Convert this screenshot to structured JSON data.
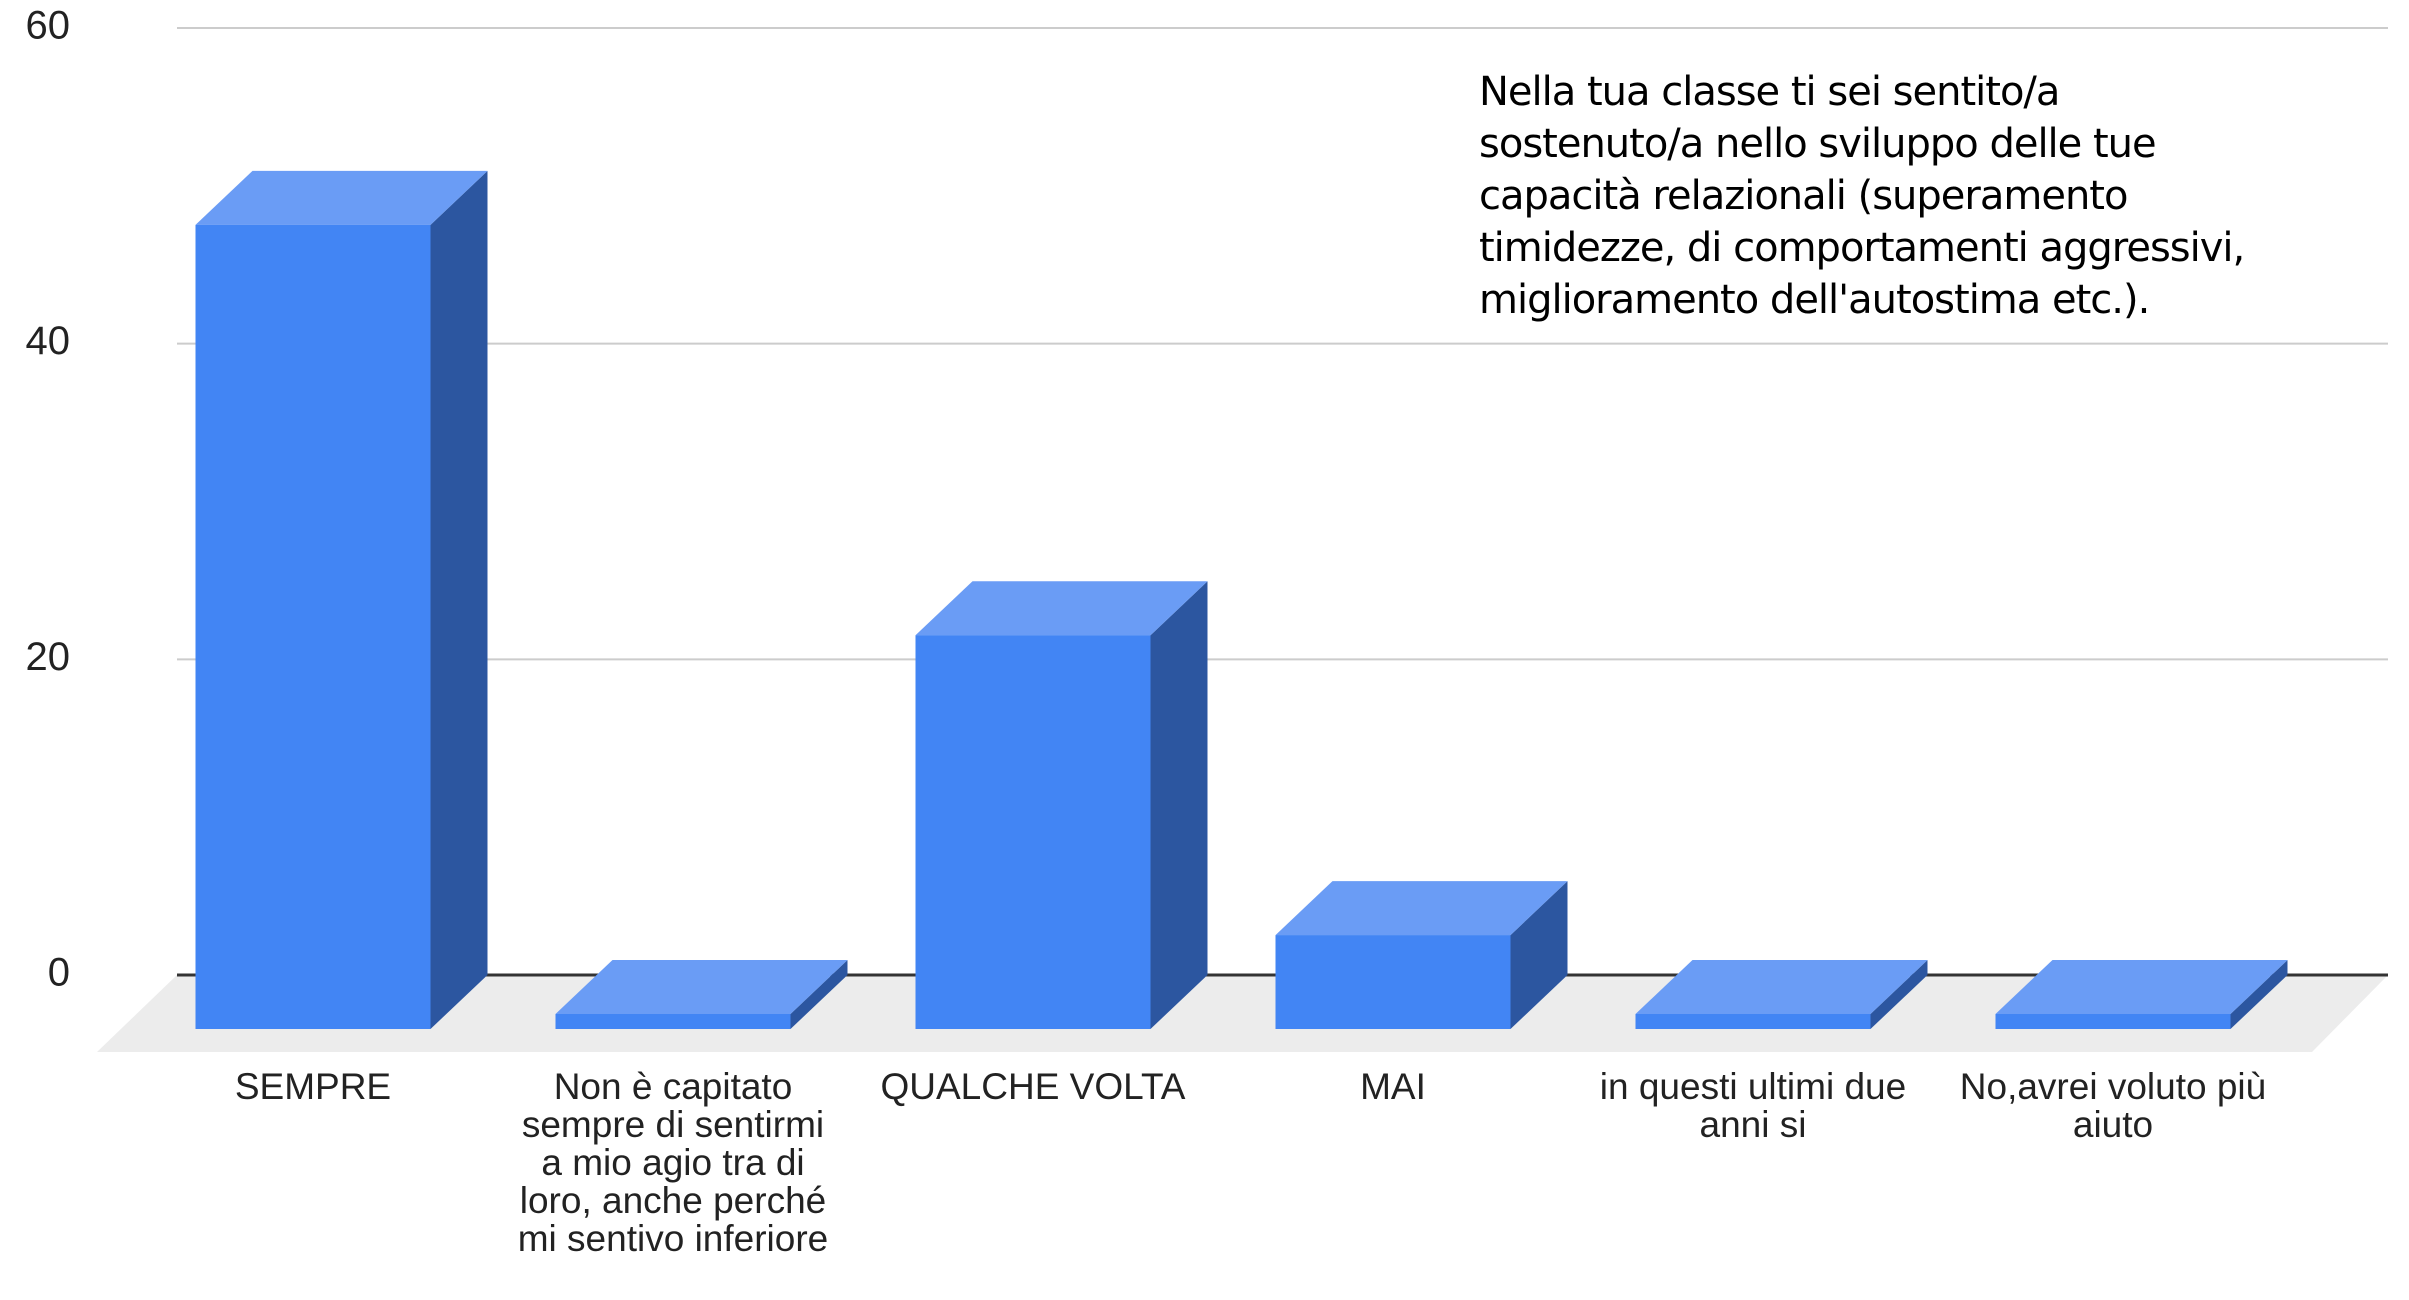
{
  "chart_data": {
    "type": "bar3d",
    "title": "Nella tua classe ti sei sentito/a sostenuto/a nello sviluppo delle tue capacità relazionali (superamento timidezze, di comportamenti aggressivi, miglioramento dell'autostima etc.).",
    "categories": [
      "SEMPRE",
      "Non è capitato sempre di sentirmi a mio agio tra di loro, anche perché mi sentivo inferiore",
      "QUALCHE VOLTA",
      "MAI",
      "in questi ultimi due anni si",
      "No,avrei voluto più aiuto"
    ],
    "values": [
      50,
      0,
      24,
      5,
      0,
      0
    ],
    "color": "#4285f4",
    "ylim": [
      0,
      60
    ],
    "yticks": [
      0,
      20,
      40,
      60
    ],
    "grid": true
  }
}
